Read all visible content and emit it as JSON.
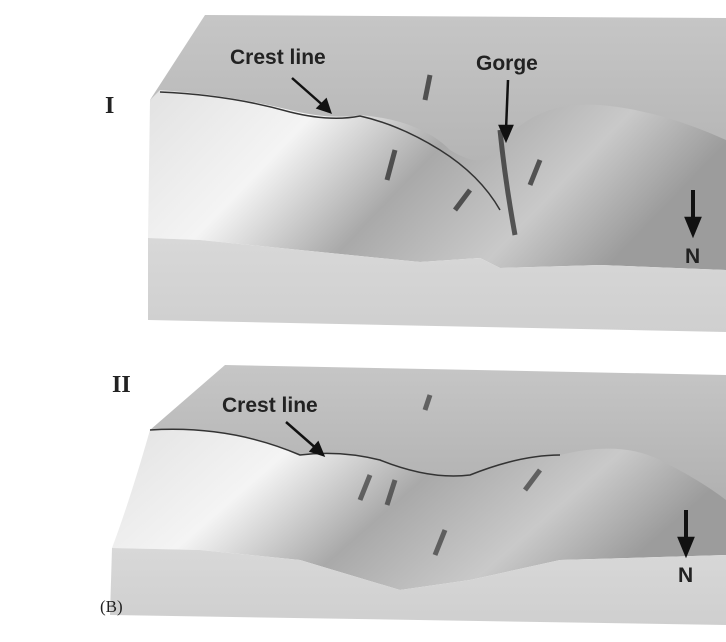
{
  "panels": [
    {
      "label": "I",
      "annotations": [
        "Crest line",
        "Gorge"
      ],
      "north": "N"
    },
    {
      "label": "II",
      "annotations": [
        "Crest line"
      ],
      "north": "N"
    }
  ],
  "caption": "(B)"
}
